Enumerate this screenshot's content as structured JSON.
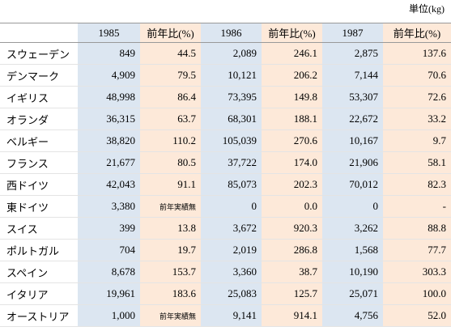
{
  "unit": "単位(kg)",
  "table": {
    "header": [
      "1985",
      "前年比(%)",
      "1986",
      "前年比(%)",
      "1987",
      "前年比(%)"
    ],
    "rows": [
      [
        "スウェーデン",
        "849",
        "44.5",
        "2,089",
        "246.1",
        "2,875",
        "137.6"
      ],
      [
        "デンマーク",
        "4,909",
        "79.5",
        "10,121",
        "206.2",
        "7,144",
        "70.6"
      ],
      [
        "イギリス",
        "48,998",
        "86.4",
        "73,395",
        "149.8",
        "53,307",
        "72.6"
      ],
      [
        "オランダ",
        "36,315",
        "63.7",
        "68,301",
        "188.1",
        "22,672",
        "33.2"
      ],
      [
        "ベルギー",
        "38,820",
        "110.2",
        "105,039",
        "270.6",
        "10,167",
        "9.7"
      ],
      [
        "フランス",
        "21,677",
        "80.5",
        "37,722",
        "174.0",
        "21,906",
        "58.1"
      ],
      [
        "西ドイツ",
        "42,043",
        "91.1",
        "85,073",
        "202.3",
        "70,012",
        "82.3"
      ],
      [
        "東ドイツ",
        "3,380",
        "前年実績無",
        "0",
        "0.0",
        "0",
        "-"
      ],
      [
        "スイス",
        "399",
        "13.8",
        "3,672",
        "920.3",
        "3,262",
        "88.8"
      ],
      [
        "ポルトガル",
        "704",
        "19.7",
        "2,019",
        "286.8",
        "1,568",
        "77.7"
      ],
      [
        "スペイン",
        "8,678",
        "153.7",
        "3,360",
        "38.7",
        "10,190",
        "303.3"
      ],
      [
        "イタリア",
        "19,961",
        "183.6",
        "25,083",
        "125.7",
        "25,071",
        "100.0"
      ],
      [
        "オーストリア",
        "1,000",
        "前年実績無",
        "9,141",
        "914.1",
        "4,756",
        "52.0"
      ]
    ]
  }
}
